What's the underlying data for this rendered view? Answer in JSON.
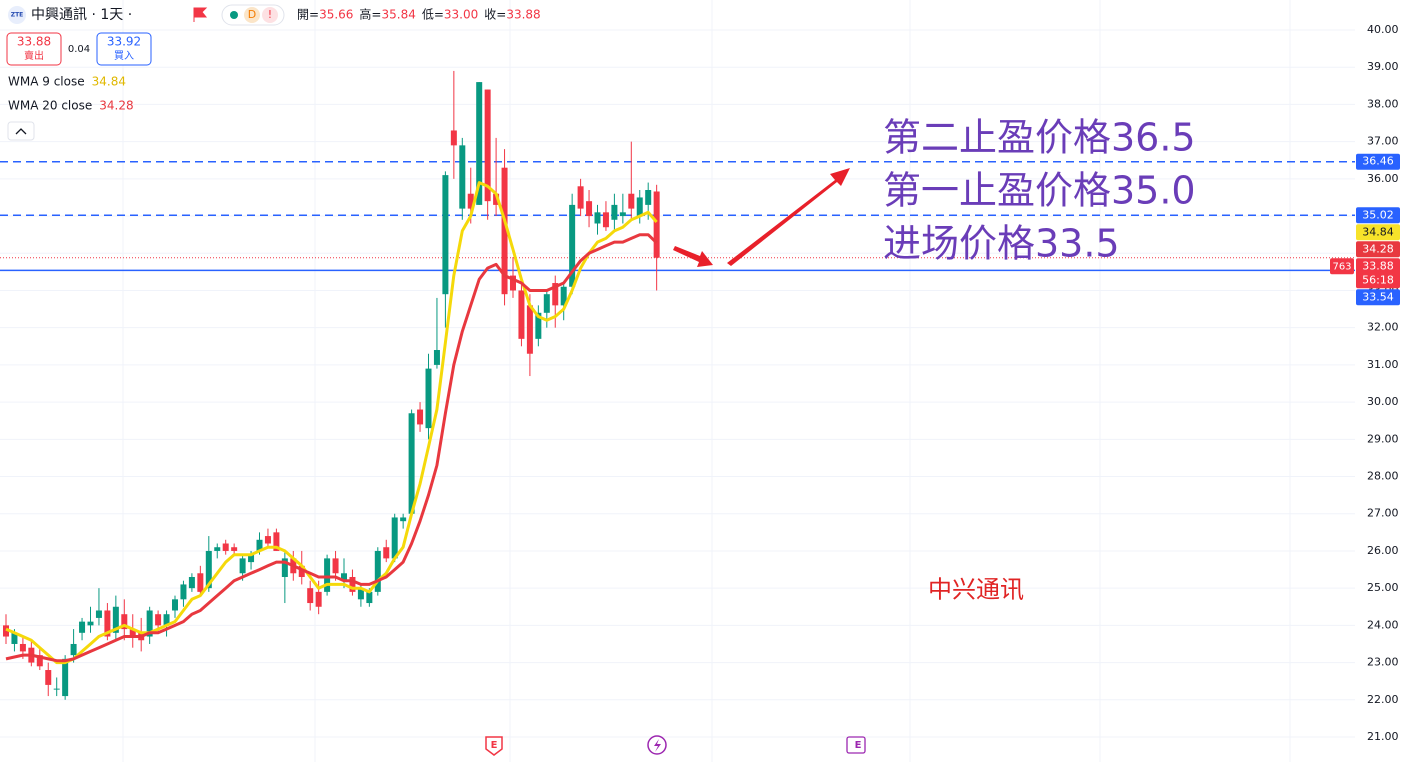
{
  "chart_data": {
    "type": "candlestick",
    "symbol_logo": "ZTE",
    "title": "中興通訊 · 1天 ·",
    "badges": [
      "D",
      "!"
    ],
    "ohlc_legend": [
      {
        "key": "開=",
        "value": 35.66
      },
      {
        "key": "高=",
        "value": 35.84
      },
      {
        "key": "低=",
        "value": 33,
        "value_label": "33.00"
      },
      {
        "key": "收=",
        "value": 33.88
      }
    ],
    "trade": {
      "sell_price": 33.88,
      "sell_label": "賣出",
      "spread": 0.04,
      "buy_price": 33.92,
      "buy_label": "買入"
    },
    "up_color": "#089981",
    "down_color": "#f23645",
    "open": [
      24.0,
      23.5,
      23.5,
      23.4,
      23.2,
      22.8,
      22.3,
      22.1,
      23.2,
      23.8,
      24.0,
      24.2,
      24.4,
      23.8,
      24.3,
      23.9,
      23.8,
      23.7,
      24.3,
      24.0,
      24.4,
      24.7,
      25.0,
      25.4,
      25.0,
      26.0,
      26.2,
      26.1,
      25.4,
      25.7,
      26.0,
      26.4,
      26.5,
      25.3,
      25.8,
      25.6,
      25.0,
      24.9,
      24.9,
      25.8,
      25.2,
      25.3,
      24.7,
      24.6,
      24.9,
      26.1,
      25.8,
      26.8,
      27.0,
      29.8,
      29.3,
      31.0,
      32.9,
      37.3,
      35.2,
      35.6,
      35.3,
      38.4,
      35.6,
      36.3,
      33.4,
      33.0,
      32.6,
      31.7,
      32.4,
      33.2,
      32.6,
      33.1,
      35.8,
      35.4,
      34.8,
      35.1,
      34.9,
      35.0,
      35.6,
      35.0,
      35.3,
      35.66
    ],
    "high": [
      24.3,
      23.9,
      23.7,
      23.6,
      23.4,
      23.0,
      22.6,
      23.2,
      23.9,
      24.2,
      24.5,
      25.0,
      24.6,
      24.8,
      24.7,
      24.3,
      24.2,
      24.5,
      24.4,
      24.4,
      24.8,
      25.2,
      25.4,
      25.6,
      26.4,
      26.2,
      26.3,
      26.2,
      25.9,
      26.0,
      26.5,
      26.6,
      26.6,
      26.0,
      26.0,
      26.0,
      25.2,
      25.2,
      25.9,
      26.0,
      25.8,
      25.5,
      25.1,
      25.0,
      26.1,
      26.3,
      27.0,
      27.0,
      29.8,
      30.0,
      31.3,
      32.8,
      36.2,
      38.9,
      37.1,
      36.3,
      38.6,
      38.4,
      37.1,
      36.8,
      33.9,
      33.4,
      32.9,
      32.6,
      33.0,
      33.4,
      33.2,
      35.6,
      36.0,
      35.7,
      35.3,
      35.4,
      35.6,
      35.6,
      37.0,
      35.7,
      35.9,
      35.84
    ],
    "low": [
      23.5,
      23.3,
      23.1,
      22.9,
      22.8,
      22.1,
      22.1,
      22.0,
      23.0,
      23.6,
      23.8,
      24.0,
      23.6,
      23.6,
      23.6,
      23.4,
      23.3,
      23.5,
      23.8,
      23.7,
      24.2,
      24.5,
      24.9,
      24.8,
      24.9,
      25.8,
      25.9,
      25.9,
      25.2,
      25.5,
      25.9,
      26.1,
      26.0,
      24.6,
      25.2,
      25.1,
      24.4,
      24.3,
      24.8,
      25.2,
      25.0,
      24.8,
      24.5,
      24.5,
      24.8,
      25.7,
      25.7,
      26.6,
      26.9,
      29.2,
      29.0,
      30.9,
      32.0,
      36.0,
      34.9,
      34.8,
      35.3,
      34.9,
      35.0,
      32.6,
      32.8,
      31.5,
      30.7,
      31.5,
      32.0,
      32.0,
      32.2,
      32.9,
      35.0,
      34.7,
      34.5,
      34.6,
      34.6,
      34.8,
      34.9,
      34.8,
      34.9,
      33.0
    ],
    "close": [
      23.7,
      23.8,
      23.3,
      23.0,
      22.9,
      22.4,
      22.3,
      23.1,
      23.5,
      24.1,
      24.1,
      24.4,
      23.7,
      24.5,
      23.9,
      23.7,
      23.6,
      24.4,
      24.0,
      24.3,
      24.7,
      25.1,
      25.3,
      24.9,
      26.0,
      26.1,
      26.0,
      26.0,
      25.8,
      25.9,
      26.3,
      26.2,
      26.0,
      25.8,
      25.4,
      25.3,
      24.6,
      24.5,
      25.8,
      25.4,
      25.4,
      24.9,
      25.0,
      24.9,
      26.0,
      25.8,
      26.9,
      26.9,
      29.7,
      29.4,
      30.9,
      31.4,
      36.1,
      36.9,
      36.9,
      35.2,
      38.6,
      35.4,
      35.3,
      32.9,
      33.0,
      31.7,
      31.3,
      32.4,
      32.9,
      32.6,
      33.1,
      35.3,
      35.2,
      35.0,
      35.1,
      34.7,
      35.3,
      35.1,
      35.2,
      35.5,
      35.7,
      33.88
    ],
    "series": [
      {
        "name": "WMA 9 close",
        "color": "#f5d90a",
        "values": [
          23.9,
          23.8,
          23.7,
          23.6,
          23.4,
          23.2,
          23.0,
          23.0,
          23.1,
          23.3,
          23.5,
          23.7,
          23.8,
          23.9,
          24.0,
          23.9,
          23.8,
          23.8,
          23.9,
          24.0,
          24.1,
          24.4,
          24.7,
          24.8,
          25.1,
          25.4,
          25.7,
          25.9,
          25.9,
          25.9,
          26.0,
          26.1,
          26.1,
          26.0,
          25.8,
          25.6,
          25.3,
          25.0,
          25.1,
          25.1,
          25.1,
          25.0,
          25.0,
          24.9,
          25.2,
          25.4,
          25.8,
          26.1,
          27.0,
          27.8,
          28.8,
          29.8,
          31.6,
          33.4,
          34.6,
          35.0,
          35.9,
          35.8,
          35.6,
          34.9,
          34.1,
          33.3,
          32.6,
          32.3,
          32.2,
          32.3,
          32.5,
          33.0,
          33.6,
          34.0,
          34.3,
          34.4,
          34.6,
          34.7,
          34.9,
          35.0,
          35.1,
          34.84
        ]
      },
      {
        "name": "WMA 20 close",
        "color": "#e8383f",
        "values": [
          23.1,
          23.15,
          23.2,
          23.2,
          23.15,
          23.1,
          23.05,
          23.05,
          23.1,
          23.2,
          23.3,
          23.4,
          23.5,
          23.6,
          23.7,
          23.7,
          23.7,
          23.8,
          23.8,
          23.9,
          24.0,
          24.1,
          24.3,
          24.4,
          24.6,
          24.8,
          25.0,
          25.2,
          25.3,
          25.4,
          25.5,
          25.6,
          25.7,
          25.7,
          25.6,
          25.5,
          25.4,
          25.3,
          25.3,
          25.3,
          25.2,
          25.2,
          25.1,
          25.1,
          25.2,
          25.3,
          25.5,
          25.7,
          26.2,
          26.8,
          27.5,
          28.3,
          29.7,
          31.0,
          31.9,
          32.6,
          33.3,
          33.6,
          33.7,
          33.4,
          33.3,
          33.2,
          33.0,
          33.0,
          33.0,
          33.1,
          33.2,
          33.5,
          33.8,
          34.0,
          34.1,
          34.2,
          34.3,
          34.3,
          34.4,
          34.5,
          34.5,
          34.28
        ]
      }
    ],
    "price_lines": [
      {
        "value": 36.46,
        "style": "dashed"
      },
      {
        "value": 35.02,
        "style": "dashed"
      },
      {
        "value": 33.54,
        "style": "solid"
      }
    ],
    "price_line_color": "#2962ff",
    "countdown": "56:18",
    "side_tag": 763,
    "ylim": [
      21,
      40
    ],
    "yticks": [
      {
        "value": 21,
        "label": "21.00"
      },
      {
        "value": 22,
        "label": "22.00"
      },
      {
        "value": 23,
        "label": "23.00"
      },
      {
        "value": 24,
        "label": "24.00"
      },
      {
        "value": 25,
        "label": "25.00"
      },
      {
        "value": 26,
        "label": "26.00"
      },
      {
        "value": 27,
        "label": "27.00"
      },
      {
        "value": 28,
        "label": "28.00"
      },
      {
        "value": 29,
        "label": "29.00"
      },
      {
        "value": 30,
        "label": "30.00"
      },
      {
        "value": 31,
        "label": "31.00"
      },
      {
        "value": 32,
        "label": "32.00"
      },
      {
        "value": 33,
        "label": "33.00"
      },
      {
        "value": 34,
        "label": "34.00"
      },
      {
        "value": 35,
        "label": "35.00"
      },
      {
        "value": 36,
        "label": "36.00"
      },
      {
        "value": 37,
        "label": "37.00"
      },
      {
        "value": 38,
        "label": "38.00"
      },
      {
        "value": 39,
        "label": "39.00"
      },
      {
        "value": 40,
        "label": "40.00"
      }
    ],
    "grid": true,
    "annotations": [
      "第二止盈价格36.5",
      "第一止盈价格35.0",
      "进场价格33.5"
    ],
    "watermark": "中兴通讯"
  }
}
